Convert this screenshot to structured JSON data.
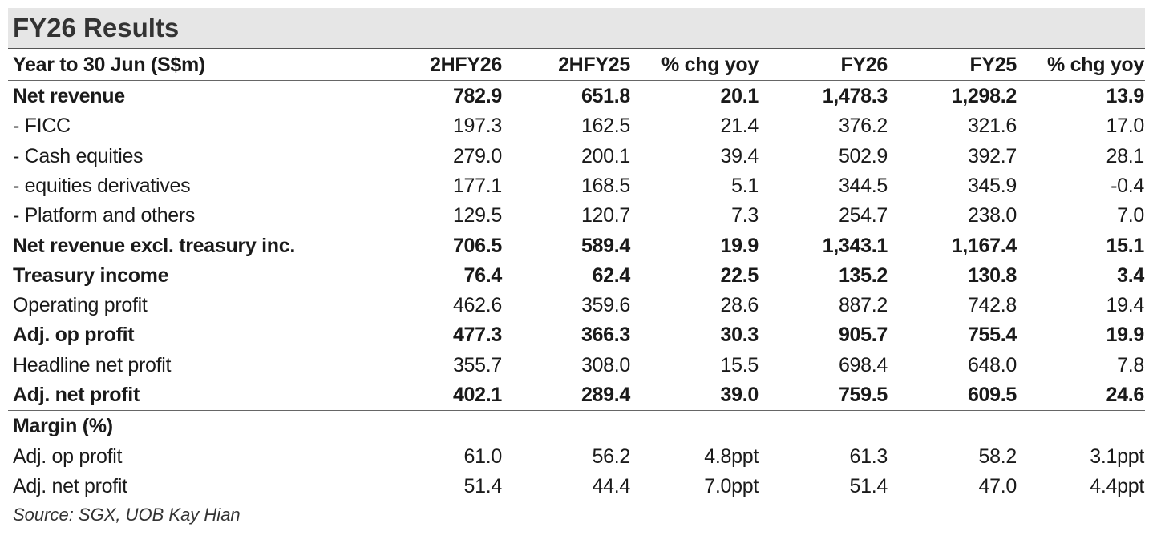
{
  "title": "FY26 Results",
  "table": {
    "header": [
      "Year to 30 Jun (S$m)",
      "2HFY26",
      "2HFY25",
      "% chg yoy",
      "FY26",
      "FY25",
      "% chg yoy"
    ],
    "rows": [
      {
        "bold": true,
        "cells": [
          "Net revenue",
          "782.9",
          "651.8",
          "20.1",
          "1,478.3",
          "1,298.2",
          "13.9"
        ]
      },
      {
        "bold": false,
        "cells": [
          "- FICC",
          "197.3",
          "162.5",
          "21.4",
          "376.2",
          "321.6",
          "17.0"
        ]
      },
      {
        "bold": false,
        "cells": [
          "- Cash equities",
          "279.0",
          "200.1",
          "39.4",
          "502.9",
          "392.7",
          "28.1"
        ]
      },
      {
        "bold": false,
        "cells": [
          "- equities derivatives",
          "177.1",
          "168.5",
          "5.1",
          "344.5",
          "345.9",
          "-0.4"
        ]
      },
      {
        "bold": false,
        "cells": [
          "- Platform and others",
          "129.5",
          "120.7",
          "7.3",
          "254.7",
          "238.0",
          "7.0"
        ]
      },
      {
        "bold": true,
        "cells": [
          "Net revenue excl. treasury inc.",
          "706.5",
          "589.4",
          "19.9",
          "1,343.1",
          "1,167.4",
          "15.1"
        ]
      },
      {
        "bold": true,
        "cells": [
          "Treasury income",
          "76.4",
          "62.4",
          "22.5",
          "135.2",
          "130.8",
          "3.4"
        ]
      },
      {
        "bold": false,
        "cells": [
          "Operating profit",
          "462.6",
          "359.6",
          "28.6",
          "887.2",
          "742.8",
          "19.4"
        ]
      },
      {
        "bold": true,
        "cells": [
          "Adj. op profit",
          "477.3",
          "366.3",
          "30.3",
          "905.7",
          "755.4",
          "19.9"
        ]
      },
      {
        "bold": false,
        "cells": [
          "Headline net profit",
          "355.7",
          "308.0",
          "15.5",
          "698.4",
          "648.0",
          "7.8"
        ]
      },
      {
        "bold": true,
        "cells": [
          "Adj. net profit",
          "402.1",
          "289.4",
          "39.0",
          "759.5",
          "609.5",
          "24.6"
        ]
      },
      {
        "bold": true,
        "cells": [
          "Margin (%)"
        ]
      },
      {
        "bold": false,
        "cells": [
          "Adj. op profit",
          "61.0",
          "56.2",
          "4.8ppt",
          "61.3",
          "58.2",
          "3.1ppt"
        ]
      },
      {
        "bold": false,
        "cells": [
          "Adj. net profit",
          "51.4",
          "44.4",
          "7.0ppt",
          "51.4",
          "47.0",
          "4.4ppt"
        ]
      }
    ]
  },
  "source": "Source: SGX, UOB Kay Hian"
}
